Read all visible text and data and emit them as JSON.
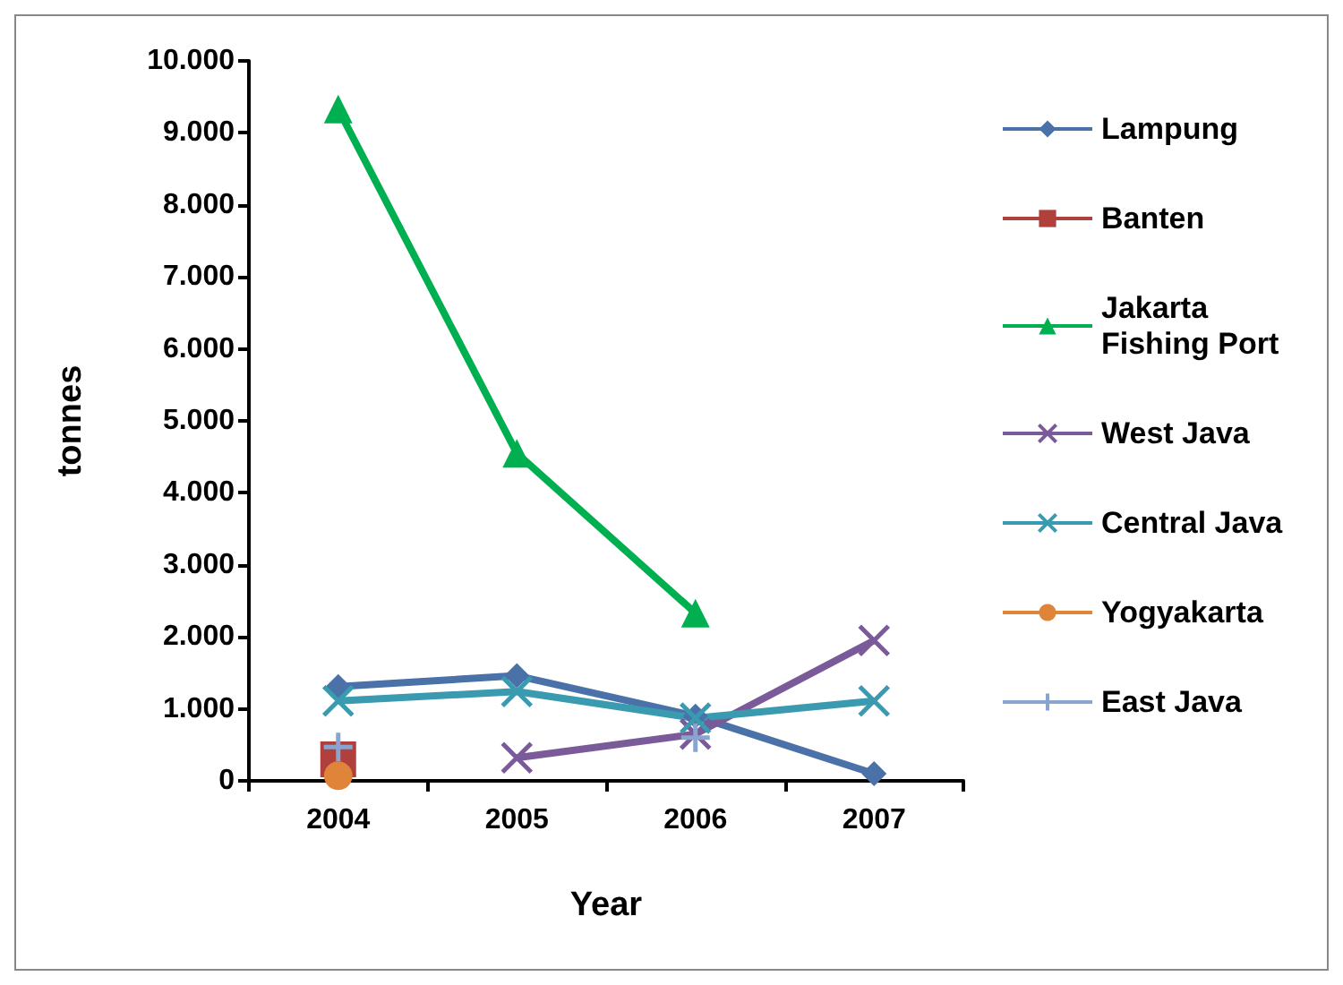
{
  "chart_data": {
    "type": "line",
    "xlabel": "Year",
    "ylabel": "tonnes",
    "categories": [
      "2004",
      "2005",
      "2006",
      "2007"
    ],
    "series": [
      {
        "name": "Lampung",
        "color": "#4a72a8",
        "marker": "diamond",
        "values": [
          1310,
          1460,
          900,
          100
        ]
      },
      {
        "name": "Banten",
        "color": "#b0403c",
        "marker": "square",
        "values": [
          300,
          null,
          null,
          null
        ]
      },
      {
        "name": "Jakarta Fishing Port",
        "color": "#00b050",
        "marker": "triangle",
        "values": [
          9330,
          4550,
          2330,
          null
        ]
      },
      {
        "name": "West Java",
        "color": "#7a5a98",
        "marker": "cross",
        "values": [
          null,
          320,
          650,
          1950
        ]
      },
      {
        "name": "Central Java",
        "color": "#3a9ab0",
        "marker": "cross",
        "values": [
          1110,
          1240,
          870,
          1110
        ]
      },
      {
        "name": "Yogyakarta",
        "color": "#e0843a",
        "marker": "circle",
        "values": [
          70,
          null,
          null,
          null
        ]
      },
      {
        "name": "East Java",
        "color": "#8aa4d0",
        "marker": "plus",
        "values": [
          470,
          null,
          600,
          null
        ]
      }
    ],
    "ylim": [
      0,
      10000
    ],
    "yticks": [
      {
        "value": 0,
        "label": "0"
      },
      {
        "value": 1000,
        "label": "1.000"
      },
      {
        "value": 2000,
        "label": "2.000"
      },
      {
        "value": 3000,
        "label": "3.000"
      },
      {
        "value": 4000,
        "label": "4.000"
      },
      {
        "value": 5000,
        "label": "5.000"
      },
      {
        "value": 6000,
        "label": "6.000"
      },
      {
        "value": 7000,
        "label": "7.000"
      },
      {
        "value": 8000,
        "label": "8.000"
      },
      {
        "value": 9000,
        "label": "9.000"
      },
      {
        "value": 10000,
        "label": "10.000"
      }
    ],
    "grid": false,
    "legend": "right"
  }
}
